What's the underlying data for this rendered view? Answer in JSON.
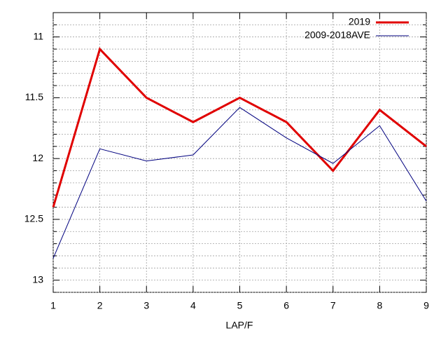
{
  "chart_data": {
    "type": "line",
    "x": [
      1,
      2,
      3,
      4,
      5,
      6,
      7,
      8,
      9
    ],
    "x_label": "LAP/F",
    "series": [
      {
        "name": "2019",
        "color": "#e00000",
        "width": 3,
        "values": [
          12.4,
          11.1,
          11.5,
          11.7,
          11.5,
          11.7,
          12.1,
          11.6,
          11.9
        ]
      },
      {
        "name": "2009-2018AVE",
        "color": "#00007f",
        "width": 1,
        "values": [
          12.82,
          11.92,
          12.02,
          11.97,
          11.58,
          11.83,
          12.04,
          11.73,
          12.35
        ]
      }
    ],
    "xlim": [
      1,
      9
    ],
    "xticks": [
      1,
      2,
      3,
      4,
      5,
      6,
      7,
      8,
      9
    ],
    "ylim": [
      10.8,
      13.1
    ],
    "y_reversed": true,
    "yticks": [
      11,
      11.5,
      12,
      12.5,
      13
    ],
    "yminor": [
      10.9,
      11.1,
      11.2,
      11.3,
      11.4,
      11.6,
      11.7,
      11.8,
      11.9,
      12.1,
      12.2,
      12.3,
      12.4,
      12.6,
      12.7,
      12.8,
      12.9,
      13.1
    ],
    "grid": true,
    "legend": "top-right"
  }
}
